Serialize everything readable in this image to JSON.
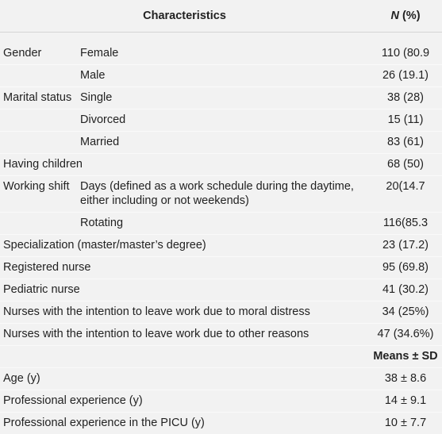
{
  "table": {
    "header": {
      "characteristics": "Characteristics",
      "value_italic": "N",
      "value_rest": "(%)"
    },
    "rows": [
      {
        "label": "Gender",
        "detail": "Female",
        "value": "110 (80.9"
      },
      {
        "detail": "Male",
        "value": "26 (19.1)"
      },
      {
        "label": "Marital status",
        "detail": "Single",
        "value": "38 (28)"
      },
      {
        "detail": "Divorced",
        "value": "15 (11)"
      },
      {
        "detail": "Married",
        "value": "83 (61)"
      },
      {
        "label": "Having children",
        "value": "68 (50)"
      },
      {
        "label": "Working shift",
        "detail": "Days (defined as a work schedule during the daytime, either including or not weekends)",
        "value": "20(14.7"
      },
      {
        "detail": "Rotating",
        "value": "116(85.3"
      },
      {
        "label": "Specialization (master/master’s degree)",
        "value": "23 (17.2)"
      },
      {
        "label": "Registered nurse",
        "value": "95 (69.8)"
      },
      {
        "label": "Pediatric nurse",
        "value": "41 (30.2)"
      },
      {
        "label": "Nurses with the intention to leave work due to moral distress",
        "value": "34 (25%)"
      },
      {
        "label": "Nurses with the intention to leave work due to other reasons",
        "value": "47 (34.6%)"
      },
      {
        "heading": "Means ± SD"
      },
      {
        "label": "Age (y)",
        "value": "38 ± 8.6"
      },
      {
        "label": "Professional experience (y)",
        "value": "14 ± 9.1"
      },
      {
        "label": "Professional experience in the PICU (y)",
        "value": "10 ± 7.7"
      }
    ]
  }
}
